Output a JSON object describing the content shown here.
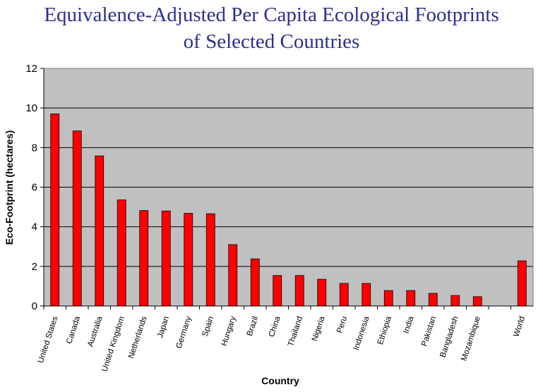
{
  "chart_data": {
    "type": "bar",
    "title": "Equivalence-Adjusted Per Capita Ecological Footprints",
    "subtitle": "of Selected Countries",
    "xlabel": "Country",
    "ylabel": "Eco-Footprint (hectares)",
    "ylim": [
      0,
      12
    ],
    "yticks": [
      0,
      2,
      4,
      6,
      8,
      10,
      12
    ],
    "grid": true,
    "legend": "none",
    "categories": [
      "United States",
      "Canada",
      "Australia",
      "United Kingdom",
      "Netherlands",
      "Japan",
      "Germany",
      "Spain",
      "Hungary",
      "Brazil",
      "China",
      "Thailand",
      "Nigeria",
      "Peru",
      "Indonesia",
      "Ethiopia",
      "India",
      "Pakistan",
      "Bangladesh",
      "Mozambique",
      "",
      "World"
    ],
    "values": [
      9.7,
      8.84,
      7.58,
      5.36,
      4.82,
      4.8,
      4.68,
      4.66,
      3.1,
      2.38,
      1.54,
      1.54,
      1.35,
      1.14,
      1.14,
      0.78,
      0.78,
      0.64,
      0.53,
      0.47,
      null,
      2.28
    ],
    "colors": {
      "bar": "#ff0000",
      "plot_bg": "#c0c0c0",
      "title": "#2b2f8f"
    }
  }
}
